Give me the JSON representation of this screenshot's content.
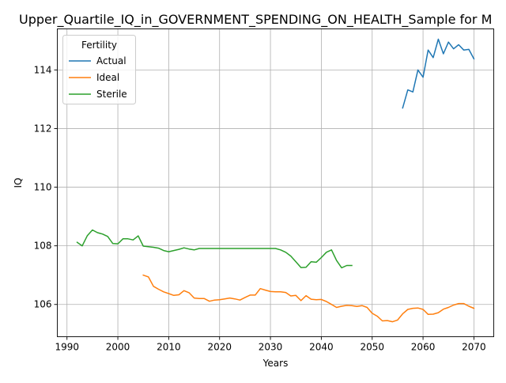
{
  "chart_data": {
    "type": "line",
    "title": "Upper_Quartile_IQ_in_GOVERNMENT_SPENDING_ON_HEALTH_Sample for M",
    "xlabel": "Years",
    "ylabel": "IQ",
    "xlim": [
      1988.1,
      2073.9
    ],
    "ylim": [
      104.9,
      115.4
    ],
    "x_ticks": [
      1990,
      2000,
      2010,
      2020,
      2030,
      2040,
      2050,
      2060,
      2070
    ],
    "y_ticks": [
      106,
      108,
      110,
      112,
      114
    ],
    "grid": true,
    "legend": {
      "title": "Fertility",
      "position": "upper-left"
    },
    "series": [
      {
        "name": "Actual",
        "color": "#1f77b4",
        "x": [
          2056,
          2057,
          2058,
          2059,
          2060,
          2061,
          2062,
          2063,
          2064,
          2065,
          2066,
          2067,
          2068,
          2069,
          2070
        ],
        "y": [
          112.7,
          113.32,
          113.25,
          114.0,
          113.75,
          114.68,
          114.42,
          115.05,
          114.55,
          114.95,
          114.72,
          114.86,
          114.68,
          114.7,
          114.38
        ]
      },
      {
        "name": "Ideal",
        "color": "#ff7f0e",
        "x": [
          2005,
          2006,
          2007,
          2008,
          2009,
          2010,
          2011,
          2012,
          2013,
          2014,
          2015,
          2016,
          2017,
          2018,
          2019,
          2020,
          2021,
          2022,
          2023,
          2024,
          2025,
          2026,
          2027,
          2028,
          2029,
          2030,
          2031,
          2032,
          2033,
          2034,
          2035,
          2036,
          2037,
          2038,
          2039,
          2040,
          2041,
          2042,
          2043,
          2044,
          2045,
          2046,
          2047,
          2048,
          2049,
          2050,
          2051,
          2052,
          2053,
          2054,
          2055,
          2056,
          2057,
          2058,
          2059,
          2060,
          2061,
          2062,
          2063,
          2064,
          2065,
          2066,
          2067,
          2068,
          2069,
          2070
        ],
        "y": [
          107.0,
          106.94,
          106.62,
          106.52,
          106.43,
          106.37,
          106.31,
          106.33,
          106.47,
          106.4,
          106.22,
          106.2,
          106.2,
          106.11,
          106.15,
          106.16,
          106.19,
          106.22,
          106.19,
          106.15,
          106.24,
          106.32,
          106.32,
          106.54,
          106.49,
          106.44,
          106.43,
          106.43,
          106.41,
          106.29,
          106.31,
          106.13,
          106.3,
          106.18,
          106.16,
          106.17,
          106.1,
          106.0,
          105.9,
          105.94,
          105.97,
          105.96,
          105.93,
          105.96,
          105.9,
          105.7,
          105.6,
          105.44,
          105.45,
          105.41,
          105.47,
          105.68,
          105.83,
          105.87,
          105.88,
          105.83,
          105.66,
          105.67,
          105.72,
          105.84,
          105.9,
          105.98,
          106.03,
          106.03,
          105.94,
          105.87
        ]
      },
      {
        "name": "Sterile",
        "color": "#2ca02c",
        "x": [
          1992,
          1993,
          1994,
          1995,
          1996,
          1997,
          1998,
          1999,
          2000,
          2001,
          2002,
          2003,
          2004,
          2005,
          2006,
          2007,
          2008,
          2009,
          2010,
          2011,
          2012,
          2013,
          2014,
          2015,
          2016,
          2017,
          2018,
          2019,
          2020,
          2021,
          2022,
          2023,
          2024,
          2025,
          2026,
          2027,
          2028,
          2029,
          2030,
          2031,
          2032,
          2033,
          2034,
          2035,
          2036,
          2037,
          2038,
          2039,
          2040,
          2041,
          2042,
          2043,
          2044,
          2045,
          2046
        ],
        "y": [
          108.12,
          108.0,
          108.35,
          108.54,
          108.45,
          108.4,
          108.32,
          108.08,
          108.07,
          108.24,
          108.24,
          108.2,
          108.34,
          107.99,
          107.97,
          107.95,
          107.92,
          107.84,
          107.8,
          107.84,
          107.88,
          107.93,
          107.89,
          107.86,
          107.91,
          107.91,
          107.91,
          107.91,
          107.91,
          107.91,
          107.91,
          107.91,
          107.91,
          107.91,
          107.91,
          107.91,
          107.91,
          107.91,
          107.91,
          107.91,
          107.86,
          107.78,
          107.65,
          107.46,
          107.26,
          107.27,
          107.46,
          107.44,
          107.6,
          107.78,
          107.86,
          107.5,
          107.25,
          107.33,
          107.33
        ]
      }
    ]
  }
}
